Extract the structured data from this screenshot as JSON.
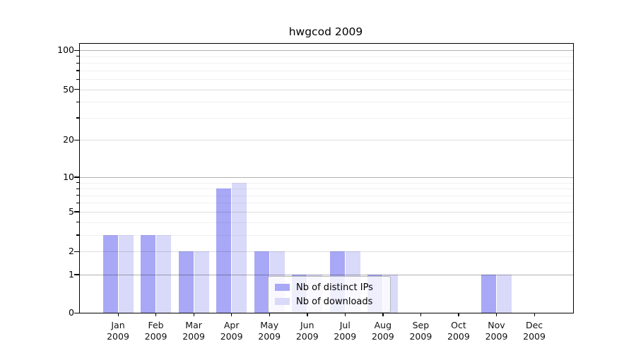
{
  "chart_data": {
    "type": "bar",
    "title": "hwgcod 2009",
    "x_month_labels": [
      "Jan",
      "Feb",
      "Mar",
      "Apr",
      "May",
      "Jun",
      "Jul",
      "Aug",
      "Sep",
      "Oct",
      "Nov",
      "Dec"
    ],
    "x_year_label": "2009",
    "series": [
      {
        "name": "Nb of distinct IPs",
        "color": "#a8a8f6",
        "values": [
          3,
          3,
          2,
          8,
          2,
          1,
          2,
          1,
          0,
          0,
          1,
          0
        ]
      },
      {
        "name": "Nb of downloads",
        "color": "#d9d9f9",
        "values": [
          3,
          3,
          2,
          9,
          2,
          1,
          2,
          1,
          0,
          0,
          1,
          0
        ]
      }
    ],
    "y_axis": {
      "scale": "log10(1+value)",
      "major_ticks": [
        0,
        1,
        2,
        5,
        10,
        20,
        50,
        100
      ],
      "minor_ticks": [
        3,
        4,
        6,
        7,
        8,
        9,
        30,
        40,
        60,
        70,
        80,
        90
      ],
      "emphasized_ticks": [
        1,
        10,
        100
      ]
    },
    "legend": {
      "position": "bottom-center"
    },
    "grid": true
  },
  "colors": {
    "background": "#ffffff",
    "bar_distinct_ips": "#a8a8f6",
    "bar_downloads": "#d9d9f9",
    "axis": "#000000"
  }
}
